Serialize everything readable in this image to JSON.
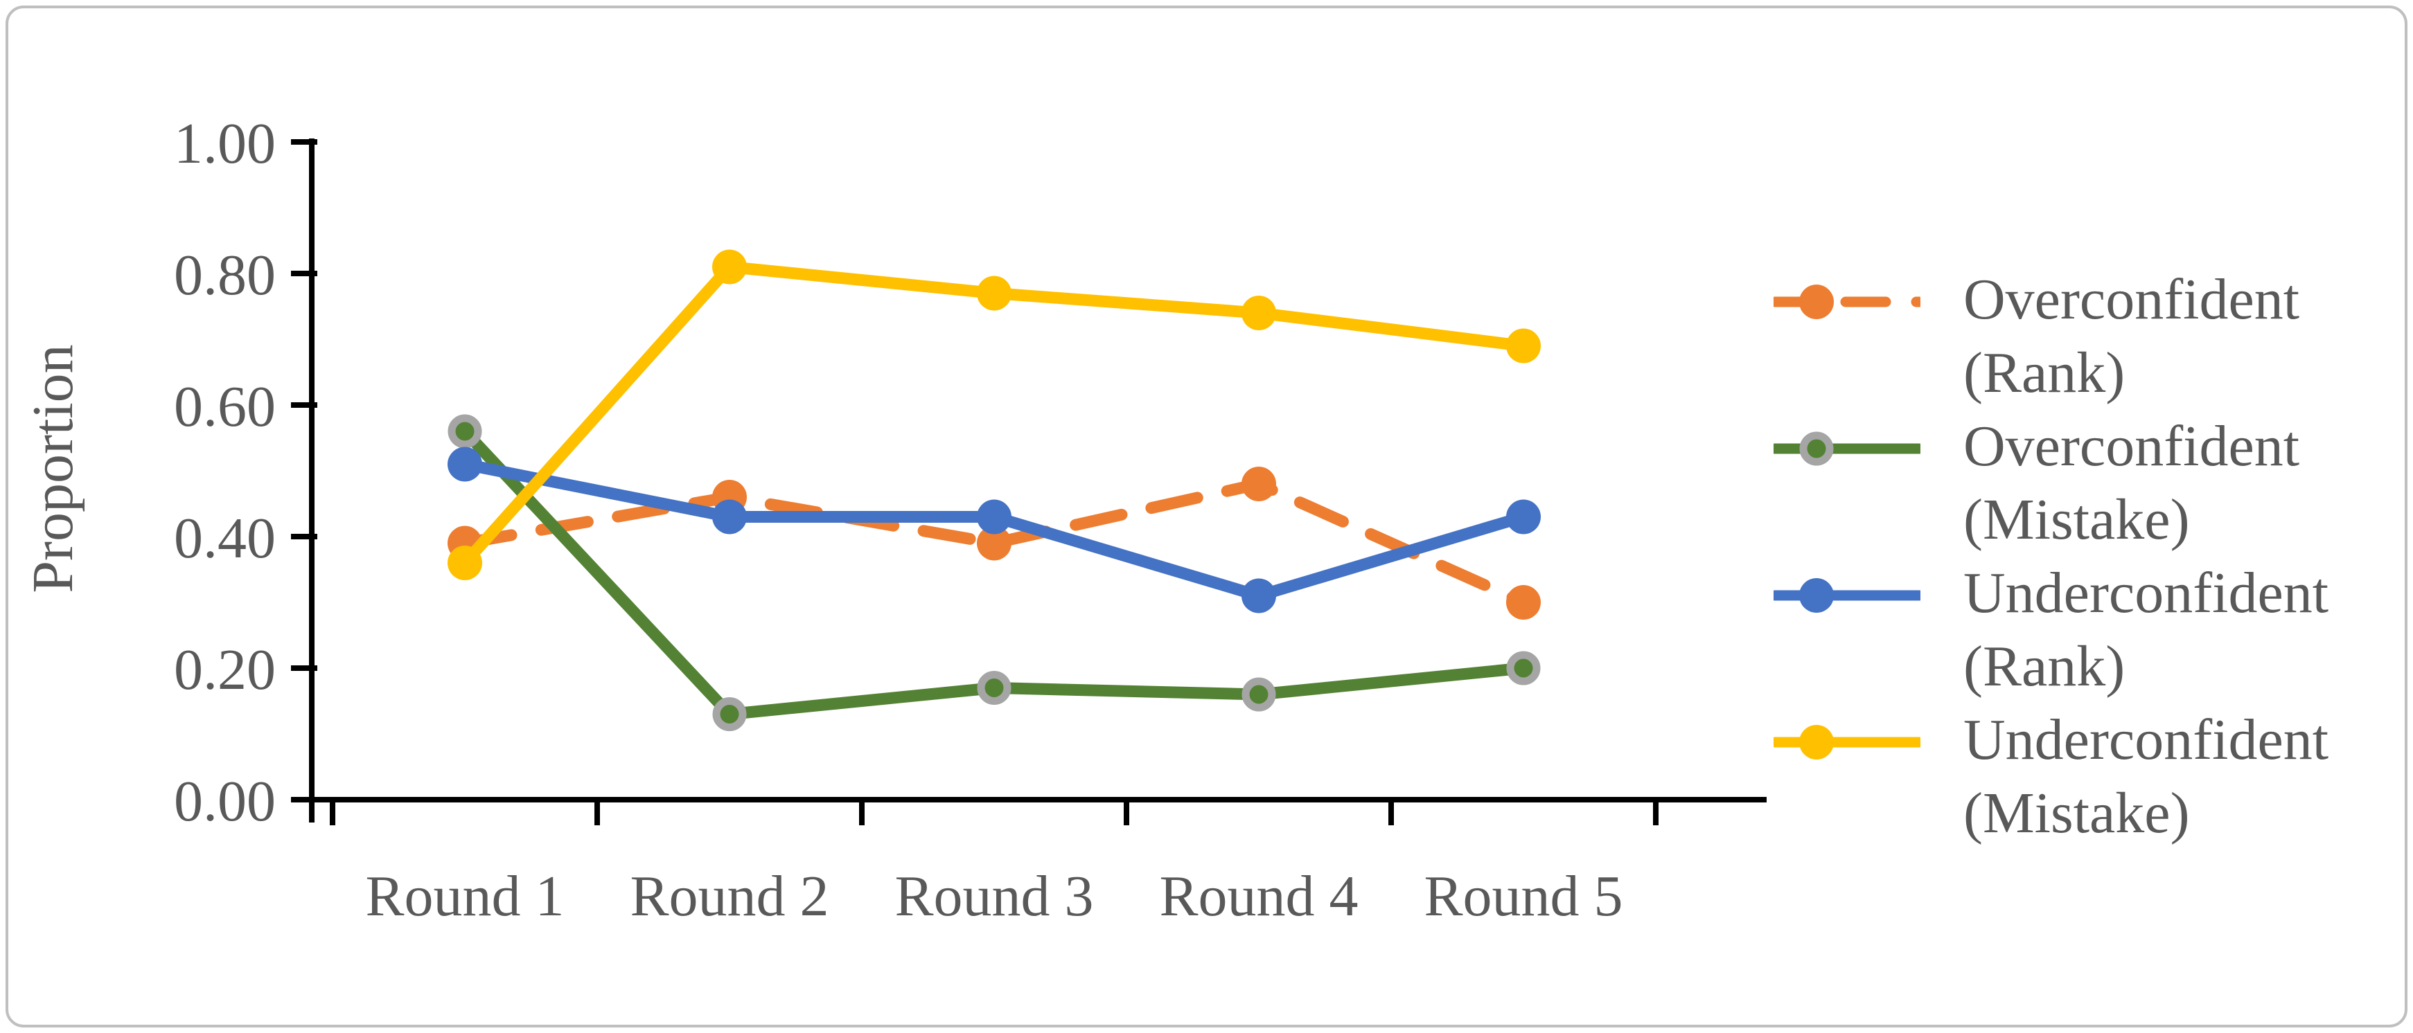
{
  "figure": {
    "background": "#ffffff",
    "border_color": "#BFBFBF"
  },
  "chart_data": {
    "type": "line",
    "title": "",
    "xlabel": "",
    "ylabel": "Proportion",
    "categories": [
      "Round 1",
      "Round 2",
      "Round 3",
      "Round 4",
      "Round 5"
    ],
    "y_ticks": [
      "0.00",
      "0.20",
      "0.40",
      "0.60",
      "0.80",
      "1.00"
    ],
    "ylim": [
      0.0,
      1.0
    ],
    "grid": false,
    "legend_position": "right",
    "text_color": "#595959",
    "axis_color": "#000000",
    "marker_ring_color": "#A5A5A5",
    "series": [
      {
        "name": "Overconfident (Rank)",
        "legend_lines": [
          "Overconfident",
          "(Rank)"
        ],
        "color": "#ED7D31",
        "line_style": "dashed",
        "marker": "circle",
        "marker_ring": false,
        "values": [
          0.39,
          0.46,
          0.39,
          0.48,
          0.3
        ]
      },
      {
        "name": "Overconfident (Mistake)",
        "legend_lines": [
          "Overconfident",
          "(Mistake)"
        ],
        "color": "#548235",
        "line_style": "solid",
        "marker": "circle",
        "marker_ring": true,
        "values": [
          0.56,
          0.13,
          0.17,
          0.16,
          0.2
        ]
      },
      {
        "name": "Underconfident (Rank)",
        "legend_lines": [
          "Underconfident",
          "(Rank)"
        ],
        "color": "#4472C4",
        "line_style": "solid",
        "marker": "circle",
        "marker_ring": false,
        "values": [
          0.51,
          0.43,
          0.43,
          0.31,
          0.43
        ]
      },
      {
        "name": "Underconfident (Mistake)",
        "legend_lines": [
          "Underconfident",
          "(Mistake)"
        ],
        "color": "#FFC000",
        "line_style": "solid",
        "marker": "circle",
        "marker_ring": false,
        "values": [
          0.36,
          0.81,
          0.77,
          0.74,
          0.69
        ]
      }
    ]
  }
}
